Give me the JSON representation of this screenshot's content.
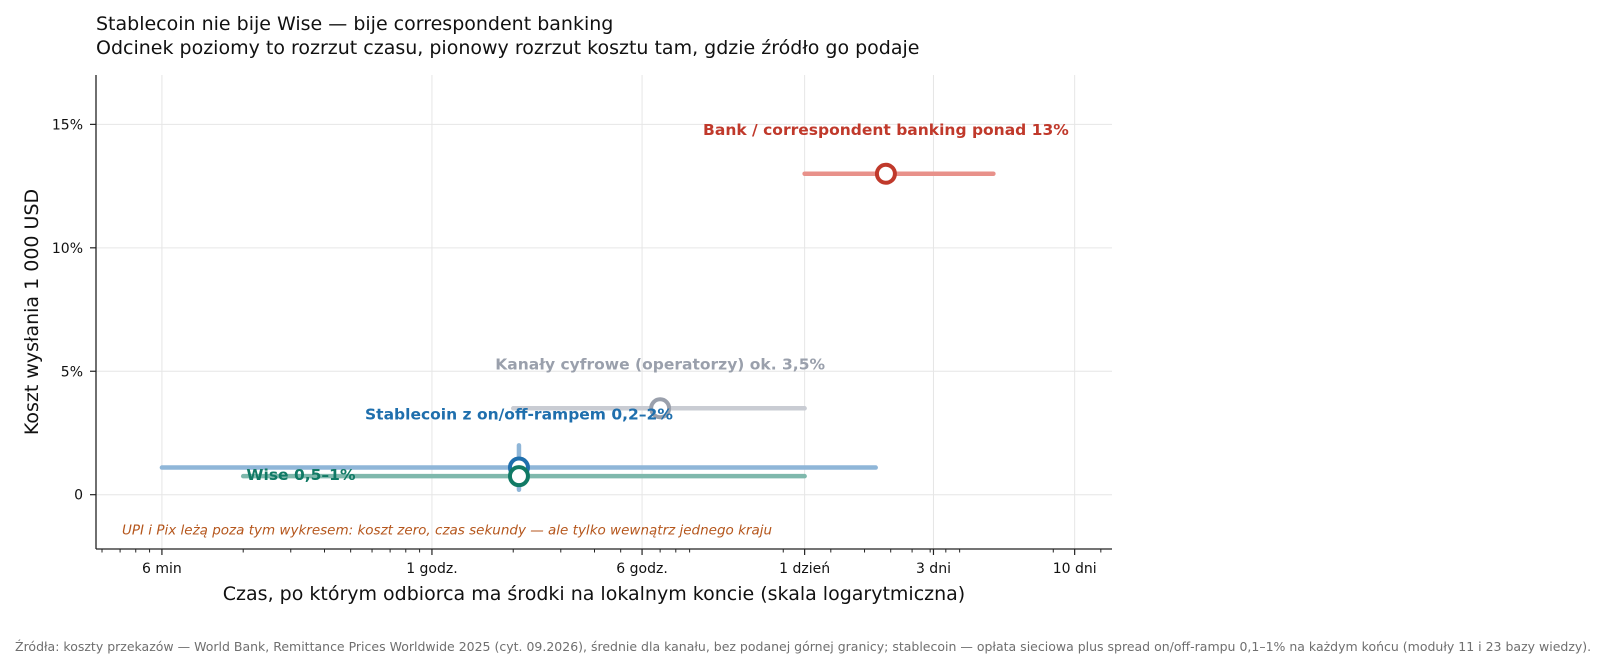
{
  "title": "Stablecoin nie bije Wise — bije correspondent banking",
  "subtitle": "Odcinek poziomy to rozrzut czasu, pionowy rozrzut kosztu tam, gdzie źródło go podaje",
  "source_note": "Źródła: koszty przekazów — World Bank, Remittance Prices Worldwide 2025 (cyt. 09.2026), średnie dla kanału, bez podanej górnej granicy; stablecoin — opłata sieciowa plus spread on/off-rampu 0,1–1% na każdym końcu (moduły 11 i 23 bazy wiedzy).",
  "chart_data": {
    "type": "scatter",
    "xscale": "log",
    "xlabel": "Czas, po którym odbiorca ma środki na lokalnym koncie (skala logarytmiczna)",
    "ylabel": "Koszt wysłania 1 000 USD",
    "xlim_hours": [
      0.057,
      330
    ],
    "ylim_percent": [
      -2.2,
      17
    ],
    "grid": true,
    "x_ticks": [
      {
        "hours": 0.1,
        "label": "6 min"
      },
      {
        "hours": 1,
        "label": "1 godz."
      },
      {
        "hours": 6,
        "label": "6 godz."
      },
      {
        "hours": 24,
        "label": "1 dzień"
      },
      {
        "hours": 72,
        "label": "3 dni"
      },
      {
        "hours": 240,
        "label": "10 dni"
      }
    ],
    "y_ticks": [
      {
        "value": 0,
        "label": "0"
      },
      {
        "value": 5,
        "label": "5%"
      },
      {
        "value": 10,
        "label": "10%"
      },
      {
        "value": 15,
        "label": "15%"
      }
    ],
    "series": [
      {
        "name": "Bank / correspondent banking",
        "value_label": "ponad 13%",
        "color": "#c0392b",
        "range_color": "#e8918a",
        "x_hours": 48,
        "x_range_hours": [
          24,
          120
        ],
        "y": 13,
        "y_range": null
      },
      {
        "name": "Kanały cyfrowe (operatorzy)",
        "value_label": "ok. 3,5%",
        "color": "#9aa0ac",
        "range_color": "#c9ccd3",
        "x_hours": 7,
        "x_range_hours": [
          2,
          24
        ],
        "y": 3.5,
        "y_range": null
      },
      {
        "name": "Stablecoin z on/off-rampem",
        "value_label": "0,2–2%",
        "color": "#1f6fad",
        "range_color": "#8fb6d8",
        "x_hours": 2.1,
        "x_range_hours": [
          0.1,
          44
        ],
        "y": 1.1,
        "y_range": [
          0.2,
          2
        ]
      },
      {
        "name": "Wise",
        "value_label": "0,5–1%",
        "color": "#117a65",
        "range_color": "#7fb8ac",
        "x_hours": 2.1,
        "x_range_hours": [
          0.2,
          24
        ],
        "y": 0.75,
        "y_range": [
          0.5,
          1
        ]
      }
    ],
    "annotation": "UPI i Pix leżą poza tym wykresem: koszt zero, czas sekundy — ale tylko wewnątrz jednego kraju",
    "annotation_color": "#b5561c"
  }
}
